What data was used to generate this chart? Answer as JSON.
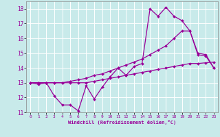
{
  "xlabel": "Windchill (Refroidissement éolien,°C)",
  "bg_color": "#c8eaea",
  "line_color": "#990099",
  "grid_color": "#ffffff",
  "xlim": [
    -0.5,
    23.5
  ],
  "ylim": [
    11,
    18.5
  ],
  "yticks": [
    11,
    12,
    13,
    14,
    15,
    16,
    17,
    18
  ],
  "xticks": [
    0,
    1,
    2,
    3,
    4,
    5,
    6,
    7,
    8,
    9,
    10,
    11,
    12,
    13,
    14,
    15,
    16,
    17,
    18,
    19,
    20,
    21,
    22,
    23
  ],
  "line1_x": [
    0,
    1,
    2,
    3,
    4,
    5,
    6,
    7,
    8,
    9,
    10,
    11,
    12,
    13,
    14,
    15,
    16,
    17,
    18,
    19,
    20,
    21,
    22,
    23
  ],
  "line1_y": [
    13.0,
    12.9,
    13.0,
    12.1,
    11.5,
    11.5,
    11.1,
    12.8,
    11.9,
    12.7,
    13.4,
    14.0,
    13.5,
    14.1,
    14.3,
    18.0,
    17.5,
    18.1,
    17.5,
    17.2,
    16.5,
    14.9,
    14.8,
    14.0
  ],
  "line2_x": [
    0,
    1,
    2,
    3,
    4,
    5,
    6,
    7,
    8,
    9,
    10,
    11,
    12,
    13,
    14,
    15,
    16,
    17,
    18,
    19,
    20,
    21,
    22,
    23
  ],
  "line2_y": [
    13.0,
    13.0,
    13.0,
    13.0,
    13.0,
    13.1,
    13.2,
    13.3,
    13.5,
    13.6,
    13.8,
    14.0,
    14.2,
    14.4,
    14.6,
    14.9,
    15.2,
    15.5,
    16.0,
    16.5,
    16.5,
    15.0,
    14.9,
    14.0
  ],
  "line3_x": [
    0,
    1,
    2,
    3,
    4,
    5,
    6,
    7,
    8,
    9,
    10,
    11,
    12,
    13,
    14,
    15,
    16,
    17,
    18,
    19,
    20,
    21,
    22,
    23
  ],
  "line3_y": [
    13.0,
    13.0,
    13.0,
    13.0,
    13.0,
    13.0,
    13.0,
    13.0,
    13.1,
    13.2,
    13.3,
    13.4,
    13.5,
    13.6,
    13.7,
    13.8,
    13.9,
    14.0,
    14.1,
    14.2,
    14.3,
    14.3,
    14.35,
    14.4
  ]
}
